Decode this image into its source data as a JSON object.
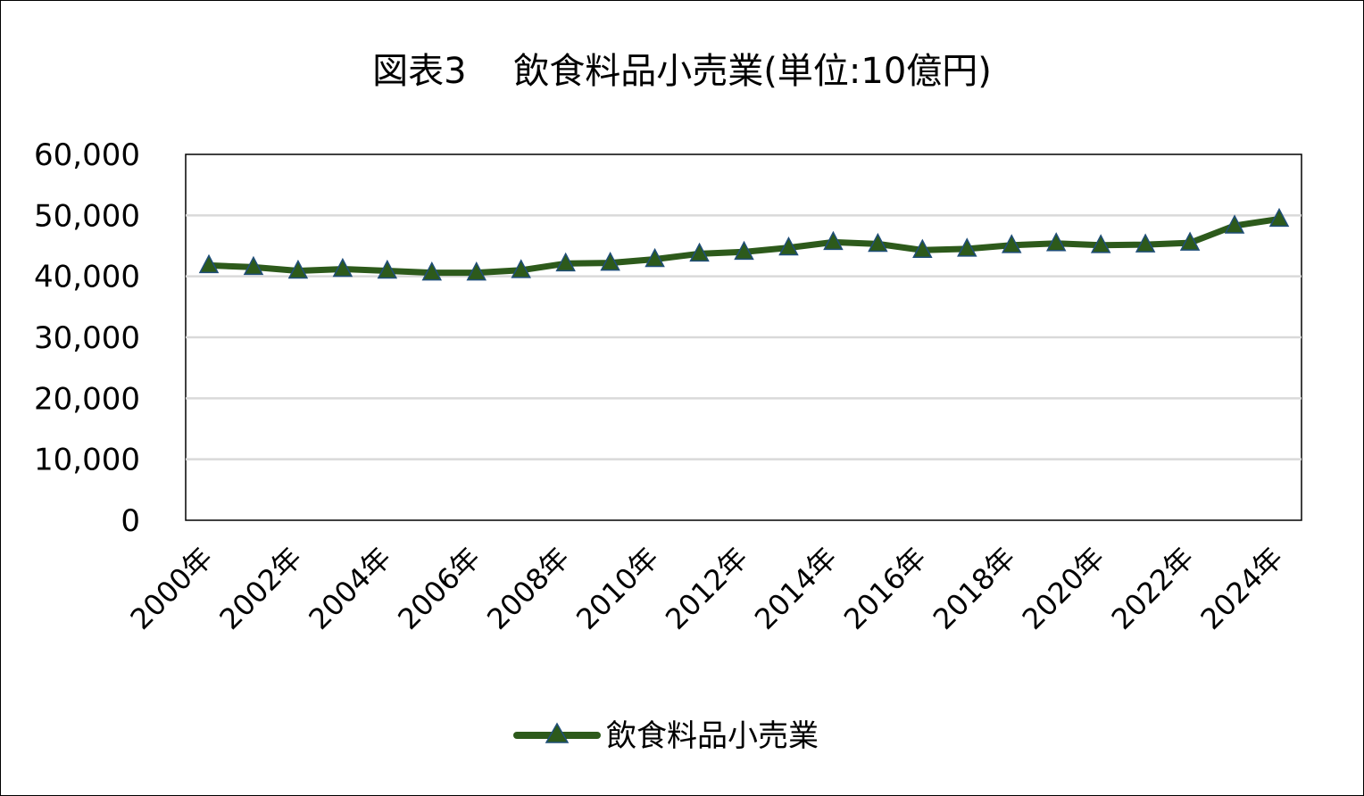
{
  "chart_data": {
    "type": "line",
    "title": "図表3　 飲食料品小売業(単位:10億円)",
    "x": [
      "2000年",
      "2001年",
      "2002年",
      "2003年",
      "2004年",
      "2005年",
      "2006年",
      "2007年",
      "2008年",
      "2009年",
      "2010年",
      "2011年",
      "2012年",
      "2013年",
      "2014年",
      "2015年",
      "2016年",
      "2017年",
      "2018年",
      "2019年",
      "2020年",
      "2021年",
      "2022年",
      "2023年",
      "2024年"
    ],
    "x_tick_labels": [
      "2000年",
      "2002年",
      "2004年",
      "2006年",
      "2008年",
      "2010年",
      "2012年",
      "2014年",
      "2016年",
      "2018年",
      "2020年",
      "2022年",
      "2024年"
    ],
    "series": [
      {
        "name": "飲食料品小売業",
        "color": "#2D5A1B",
        "marker": "triangle",
        "marker_fill": "#2D5A1B",
        "marker_edge": "#1F4E79",
        "values": [
          41800,
          41500,
          40900,
          41200,
          40900,
          40600,
          40600,
          41000,
          42100,
          42200,
          42800,
          43700,
          44000,
          44700,
          45600,
          45300,
          44300,
          44500,
          45100,
          45400,
          45100,
          45200,
          45500,
          48300,
          49400
        ]
      }
    ],
    "y_tick_labels": [
      "0",
      "10,000",
      "20,000",
      "30,000",
      "40,000",
      "50,000",
      "60,000"
    ],
    "ylim": [
      0,
      60000
    ],
    "grid": true,
    "legend_position": "bottom"
  }
}
